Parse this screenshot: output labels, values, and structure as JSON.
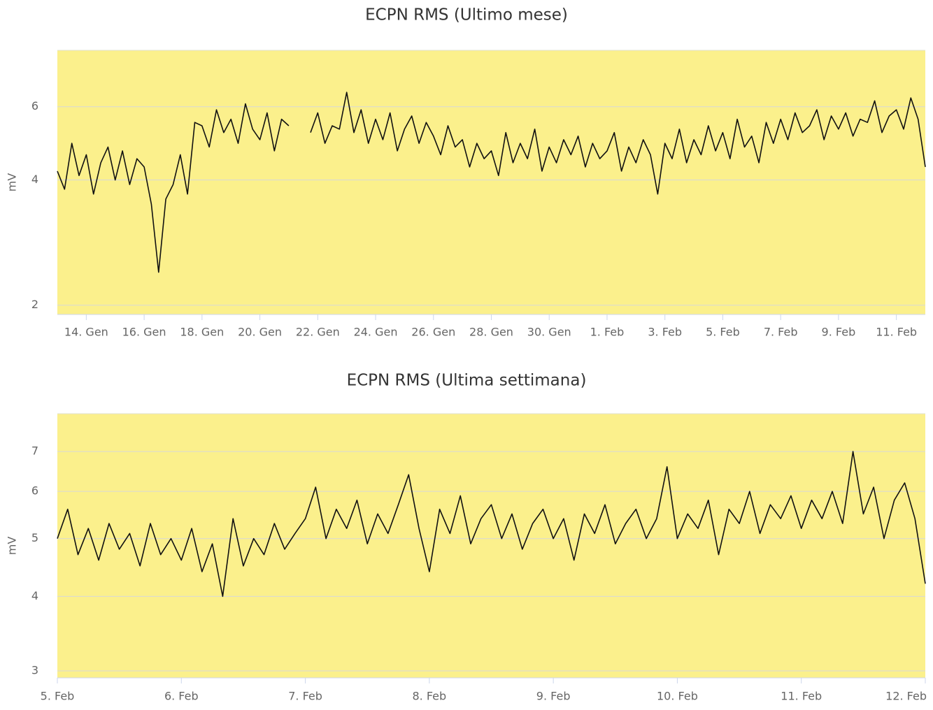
{
  "chart_data": [
    {
      "type": "line",
      "title": "ECPN RMS (Ultimo mese)",
      "ylabel": "mV",
      "log_scale": true,
      "grid": true,
      "plot_background": "#fbf08c",
      "color": "#111111",
      "xlim": [
        "01-13T00",
        "02-12T00"
      ],
      "xticks": [
        {
          "value": "01-14",
          "label": "14. Gen"
        },
        {
          "value": "01-16",
          "label": "16. Gen"
        },
        {
          "value": "01-18",
          "label": "18. Gen"
        },
        {
          "value": "01-20",
          "label": "20. Gen"
        },
        {
          "value": "01-22",
          "label": "22. Gen"
        },
        {
          "value": "01-24",
          "label": "24. Gen"
        },
        {
          "value": "01-26",
          "label": "26. Gen"
        },
        {
          "value": "01-28",
          "label": "28. Gen"
        },
        {
          "value": "01-30",
          "label": "30. Gen"
        },
        {
          "value": "02-01",
          "label": "1. Feb"
        },
        {
          "value": "02-03",
          "label": "3. Feb"
        },
        {
          "value": "02-05",
          "label": "5. Feb"
        },
        {
          "value": "02-07",
          "label": "7. Feb"
        },
        {
          "value": "02-09",
          "label": "9. Feb"
        },
        {
          "value": "02-11",
          "label": "11. Feb"
        }
      ],
      "ylim": [
        1.9,
        8.2
      ],
      "yticks": [
        2,
        4,
        6
      ],
      "x": [
        "01-13T00",
        "01-13T06",
        "01-13T12",
        "01-13T18",
        "01-14T00",
        "01-14T06",
        "01-14T12",
        "01-14T18",
        "01-15T00",
        "01-15T06",
        "01-15T12",
        "01-15T18",
        "01-16T00",
        "01-16T06",
        "01-16T12",
        "01-16T18",
        "01-17T00",
        "01-17T06",
        "01-17T12",
        "01-17T18",
        "01-18T00",
        "01-18T06",
        "01-18T12",
        "01-18T18",
        "01-19T00",
        "01-19T06",
        "01-19T12",
        "01-19T18",
        "01-20T00",
        "01-20T06",
        "01-20T12",
        "01-20T18",
        "01-21T00",
        "01-21T06",
        "01-21T12",
        "01-21T18",
        "01-22T00",
        "01-22T06",
        "01-22T12",
        "01-22T18",
        "01-23T00",
        "01-23T06",
        "01-23T12",
        "01-23T18",
        "01-24T00",
        "01-24T06",
        "01-24T12",
        "01-24T18",
        "01-25T00",
        "01-25T06",
        "01-25T12",
        "01-25T18",
        "01-26T00",
        "01-26T06",
        "01-26T12",
        "01-26T18",
        "01-27T00",
        "01-27T06",
        "01-27T12",
        "01-27T18",
        "01-28T00",
        "01-28T06",
        "01-28T12",
        "01-28T18",
        "01-29T00",
        "01-29T06",
        "01-29T12",
        "01-29T18",
        "01-30T00",
        "01-30T06",
        "01-30T12",
        "01-30T18",
        "01-31T00",
        "01-31T06",
        "01-31T12",
        "01-31T18",
        "02-01T00",
        "02-01T06",
        "02-01T12",
        "02-01T18",
        "02-02T00",
        "02-02T06",
        "02-02T12",
        "02-02T18",
        "02-03T00",
        "02-03T06",
        "02-03T12",
        "02-03T18",
        "02-04T00",
        "02-04T06",
        "02-04T12",
        "02-04T18",
        "02-05T00",
        "02-05T06",
        "02-05T12",
        "02-05T18",
        "02-06T00",
        "02-06T06",
        "02-06T12",
        "02-06T18",
        "02-07T00",
        "02-07T06",
        "02-07T12",
        "02-07T18",
        "02-08T00",
        "02-08T06",
        "02-08T12",
        "02-08T18",
        "02-09T00",
        "02-09T06",
        "02-09T12",
        "02-09T18",
        "02-10T00",
        "02-10T06",
        "02-10T12",
        "02-10T18",
        "02-11T00",
        "02-11T06",
        "02-11T12",
        "02-11T18",
        "02-12T00"
      ],
      "values": [
        4.2,
        3.8,
        4.9,
        4.1,
        4.6,
        3.7,
        4.4,
        4.8,
        4.0,
        4.7,
        3.9,
        4.5,
        4.3,
        3.5,
        2.4,
        3.6,
        3.9,
        4.6,
        3.7,
        5.5,
        5.4,
        4.8,
        5.9,
        5.2,
        5.6,
        4.9,
        6.1,
        5.3,
        5.0,
        5.8,
        4.7,
        5.6,
        5.4,
        null,
        null,
        5.2,
        5.8,
        4.9,
        5.4,
        5.3,
        6.5,
        5.2,
        5.9,
        4.9,
        5.6,
        5.0,
        5.8,
        4.7,
        5.3,
        5.7,
        4.9,
        5.5,
        5.1,
        4.6,
        5.4,
        4.8,
        5.0,
        4.3,
        4.9,
        4.5,
        4.7,
        4.1,
        5.2,
        4.4,
        4.9,
        4.5,
        5.3,
        4.2,
        4.8,
        4.4,
        5.0,
        4.6,
        5.1,
        4.3,
        4.9,
        4.5,
        4.7,
        5.2,
        4.2,
        4.8,
        4.4,
        5.0,
        4.6,
        3.7,
        4.9,
        4.5,
        5.3,
        4.4,
        5.0,
        4.6,
        5.4,
        4.7,
        5.2,
        4.5,
        5.6,
        4.8,
        5.1,
        4.4,
        5.5,
        4.9,
        5.6,
        5.0,
        5.8,
        5.2,
        5.4,
        5.9,
        5.0,
        5.7,
        5.3,
        5.8,
        5.1,
        5.6,
        5.5,
        6.2,
        5.2,
        5.7,
        5.9,
        5.3,
        6.3,
        5.6,
        4.3
      ]
    },
    {
      "type": "line",
      "title": "ECPN RMS (Ultima settimana)",
      "ylabel": "mV",
      "log_scale": true,
      "grid": true,
      "plot_background": "#fbf08c",
      "color": "#111111",
      "xlim": [
        "02-05T00",
        "02-12T00"
      ],
      "xticks": [
        {
          "value": "02-05",
          "label": "5. Feb"
        },
        {
          "value": "02-06",
          "label": "6. Feb"
        },
        {
          "value": "02-07",
          "label": "7. Feb"
        },
        {
          "value": "02-08",
          "label": "8. Feb"
        },
        {
          "value": "02-09",
          "label": "9. Feb"
        },
        {
          "value": "02-10",
          "label": "10. Feb"
        },
        {
          "value": "02-11",
          "label": "11. Feb"
        },
        {
          "value": "02-12",
          "label": "12. Feb"
        }
      ],
      "ylim": [
        2.92,
        8.1
      ],
      "yticks": [
        3,
        4,
        5,
        6,
        7
      ],
      "x": [
        "02-05T00",
        "02-05T02",
        "02-05T04",
        "02-05T06",
        "02-05T08",
        "02-05T10",
        "02-05T12",
        "02-05T14",
        "02-05T16",
        "02-05T18",
        "02-05T20",
        "02-05T22",
        "02-06T00",
        "02-06T02",
        "02-06T04",
        "02-06T06",
        "02-06T08",
        "02-06T10",
        "02-06T12",
        "02-06T14",
        "02-06T16",
        "02-06T18",
        "02-06T20",
        "02-06T22",
        "02-07T00",
        "02-07T02",
        "02-07T04",
        "02-07T06",
        "02-07T08",
        "02-07T10",
        "02-07T12",
        "02-07T14",
        "02-07T16",
        "02-07T18",
        "02-07T20",
        "02-07T22",
        "02-08T00",
        "02-08T02",
        "02-08T04",
        "02-08T06",
        "02-08T08",
        "02-08T10",
        "02-08T12",
        "02-08T14",
        "02-08T16",
        "02-08T18",
        "02-08T20",
        "02-08T22",
        "02-09T00",
        "02-09T02",
        "02-09T04",
        "02-09T06",
        "02-09T08",
        "02-09T10",
        "02-09T12",
        "02-09T14",
        "02-09T16",
        "02-09T18",
        "02-09T20",
        "02-09T22",
        "02-10T00",
        "02-10T02",
        "02-10T04",
        "02-10T06",
        "02-10T08",
        "02-10T10",
        "02-10T12",
        "02-10T14",
        "02-10T16",
        "02-10T18",
        "02-10T20",
        "02-10T22",
        "02-11T00",
        "02-11T02",
        "02-11T04",
        "02-11T06",
        "02-11T08",
        "02-11T10",
        "02-11T12",
        "02-11T14",
        "02-11T16",
        "02-11T18",
        "02-11T20",
        "02-11T22",
        "02-12T00"
      ],
      "values": [
        5.0,
        5.6,
        4.7,
        5.2,
        4.6,
        5.3,
        4.8,
        5.1,
        4.5,
        5.3,
        4.7,
        5.0,
        4.6,
        5.2,
        4.4,
        4.9,
        4.0,
        5.4,
        4.5,
        5.0,
        4.7,
        5.3,
        4.8,
        5.1,
        5.4,
        6.1,
        5.0,
        5.6,
        5.2,
        5.8,
        4.9,
        5.5,
        5.1,
        5.7,
        6.4,
        5.2,
        4.4,
        5.6,
        5.1,
        5.9,
        4.9,
        5.4,
        5.7,
        5.0,
        5.5,
        4.8,
        5.3,
        5.6,
        5.0,
        5.4,
        4.6,
        5.5,
        5.1,
        5.7,
        4.9,
        5.3,
        5.6,
        5.0,
        5.4,
        6.6,
        5.0,
        5.5,
        5.2,
        5.8,
        4.7,
        5.6,
        5.3,
        6.0,
        5.1,
        5.7,
        5.4,
        5.9,
        5.2,
        5.8,
        5.4,
        6.0,
        5.3,
        7.0,
        5.5,
        6.1,
        5.0,
        5.8,
        6.2,
        5.4,
        4.2
      ]
    }
  ]
}
